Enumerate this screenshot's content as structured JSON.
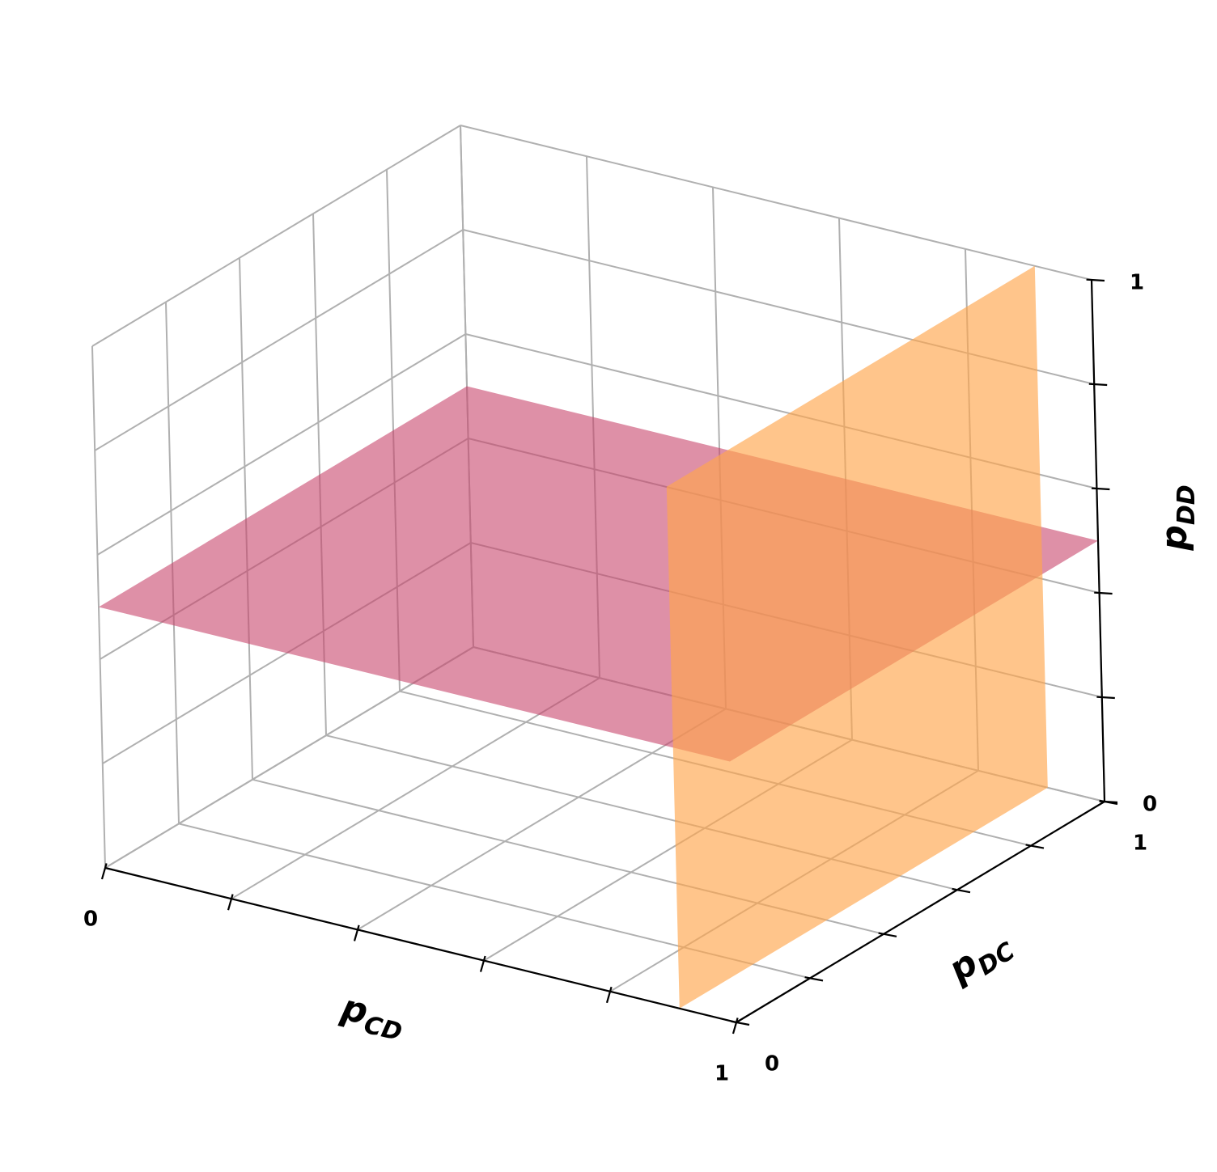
{
  "chart_data": {
    "type": "surface3d",
    "title": "",
    "axes": {
      "x": {
        "label": "p",
        "label_sub": "CD",
        "range": [
          0,
          1
        ],
        "ticks": [
          0,
          0.2,
          0.4,
          0.6,
          0.8,
          1
        ],
        "tick_labels": [
          "0",
          "",
          "",
          "",
          "",
          "1"
        ]
      },
      "y": {
        "label": "p",
        "label_sub": "DC",
        "range": [
          0,
          1
        ],
        "ticks": [
          0,
          0.2,
          0.4,
          0.6,
          0.8,
          1
        ],
        "tick_labels": [
          "0",
          "",
          "",
          "",
          "",
          "1"
        ]
      },
      "z": {
        "label": "p",
        "label_sub": "DD",
        "range": [
          0,
          1
        ],
        "ticks": [
          0,
          0.2,
          0.4,
          0.6,
          0.8,
          1
        ],
        "tick_labels": [
          "0",
          "",
          "",
          "",
          "",
          "1"
        ]
      }
    },
    "grid": true,
    "surfaces": [
      {
        "kind": "horizontal-plane",
        "z": 0.5,
        "x_range": [
          0,
          1
        ],
        "y_range": [
          0,
          1
        ],
        "color": "#c8466c",
        "opacity": 0.6
      },
      {
        "kind": "vertical-plane",
        "x": 0.91,
        "y_range": [
          0,
          1
        ],
        "z_range": [
          0,
          1
        ],
        "color": "#ffa64d",
        "opacity": 0.65
      }
    ]
  }
}
